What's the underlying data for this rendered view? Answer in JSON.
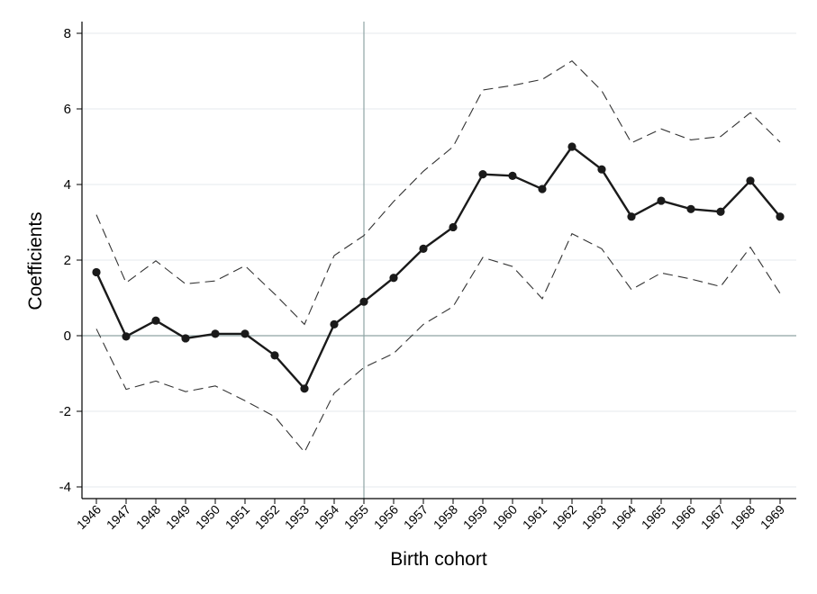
{
  "chart_data": {
    "type": "line",
    "xlabel": "Birth cohort",
    "ylabel": "Coefficients",
    "ylim": [
      -4,
      8
    ],
    "yticks": [
      "-4",
      "-2",
      "0",
      "2",
      "4",
      "6",
      "8"
    ],
    "categories": [
      "1946",
      "1947",
      "1948",
      "1949",
      "1950",
      "1951",
      "1952",
      "1953",
      "1954",
      "1955",
      "1956",
      "1957",
      "1958",
      "1959",
      "1960",
      "1961",
      "1962",
      "1963",
      "1964",
      "1965",
      "1966",
      "1967",
      "1968",
      "1969"
    ],
    "reference_x": "1955",
    "reference_y": 0,
    "grid": true,
    "series": [
      {
        "role": "estimate",
        "values": [
          1.68,
          -0.02,
          0.4,
          -0.07,
          0.05,
          0.05,
          -0.52,
          -1.4,
          0.3,
          0.9,
          1.53,
          2.3,
          2.87,
          4.27,
          4.23,
          3.88,
          5.0,
          4.4,
          3.15,
          3.57,
          3.35,
          3.28,
          4.1,
          3.15
        ]
      },
      {
        "role": "upper-ci",
        "values": [
          3.2,
          1.4,
          1.98,
          1.37,
          1.45,
          1.85,
          1.1,
          0.3,
          2.12,
          2.65,
          3.55,
          4.35,
          5.0,
          6.5,
          6.62,
          6.78,
          7.27,
          6.48,
          5.1,
          5.47,
          5.18,
          5.27,
          5.9,
          5.12
        ]
      },
      {
        "role": "lower-ci",
        "values": [
          0.18,
          -1.42,
          -1.2,
          -1.48,
          -1.33,
          -1.72,
          -2.14,
          -3.08,
          -1.52,
          -0.84,
          -0.47,
          0.3,
          0.77,
          2.07,
          1.83,
          0.98,
          2.7,
          2.3,
          1.22,
          1.66,
          1.5,
          1.3,
          2.34,
          1.12
        ]
      }
    ],
    "colors": {
      "estimate": "#1a1a1a",
      "ci": "#333333",
      "grid": "#e6e9ec",
      "reference": "#8fa5a5",
      "axis": "#000000"
    }
  }
}
